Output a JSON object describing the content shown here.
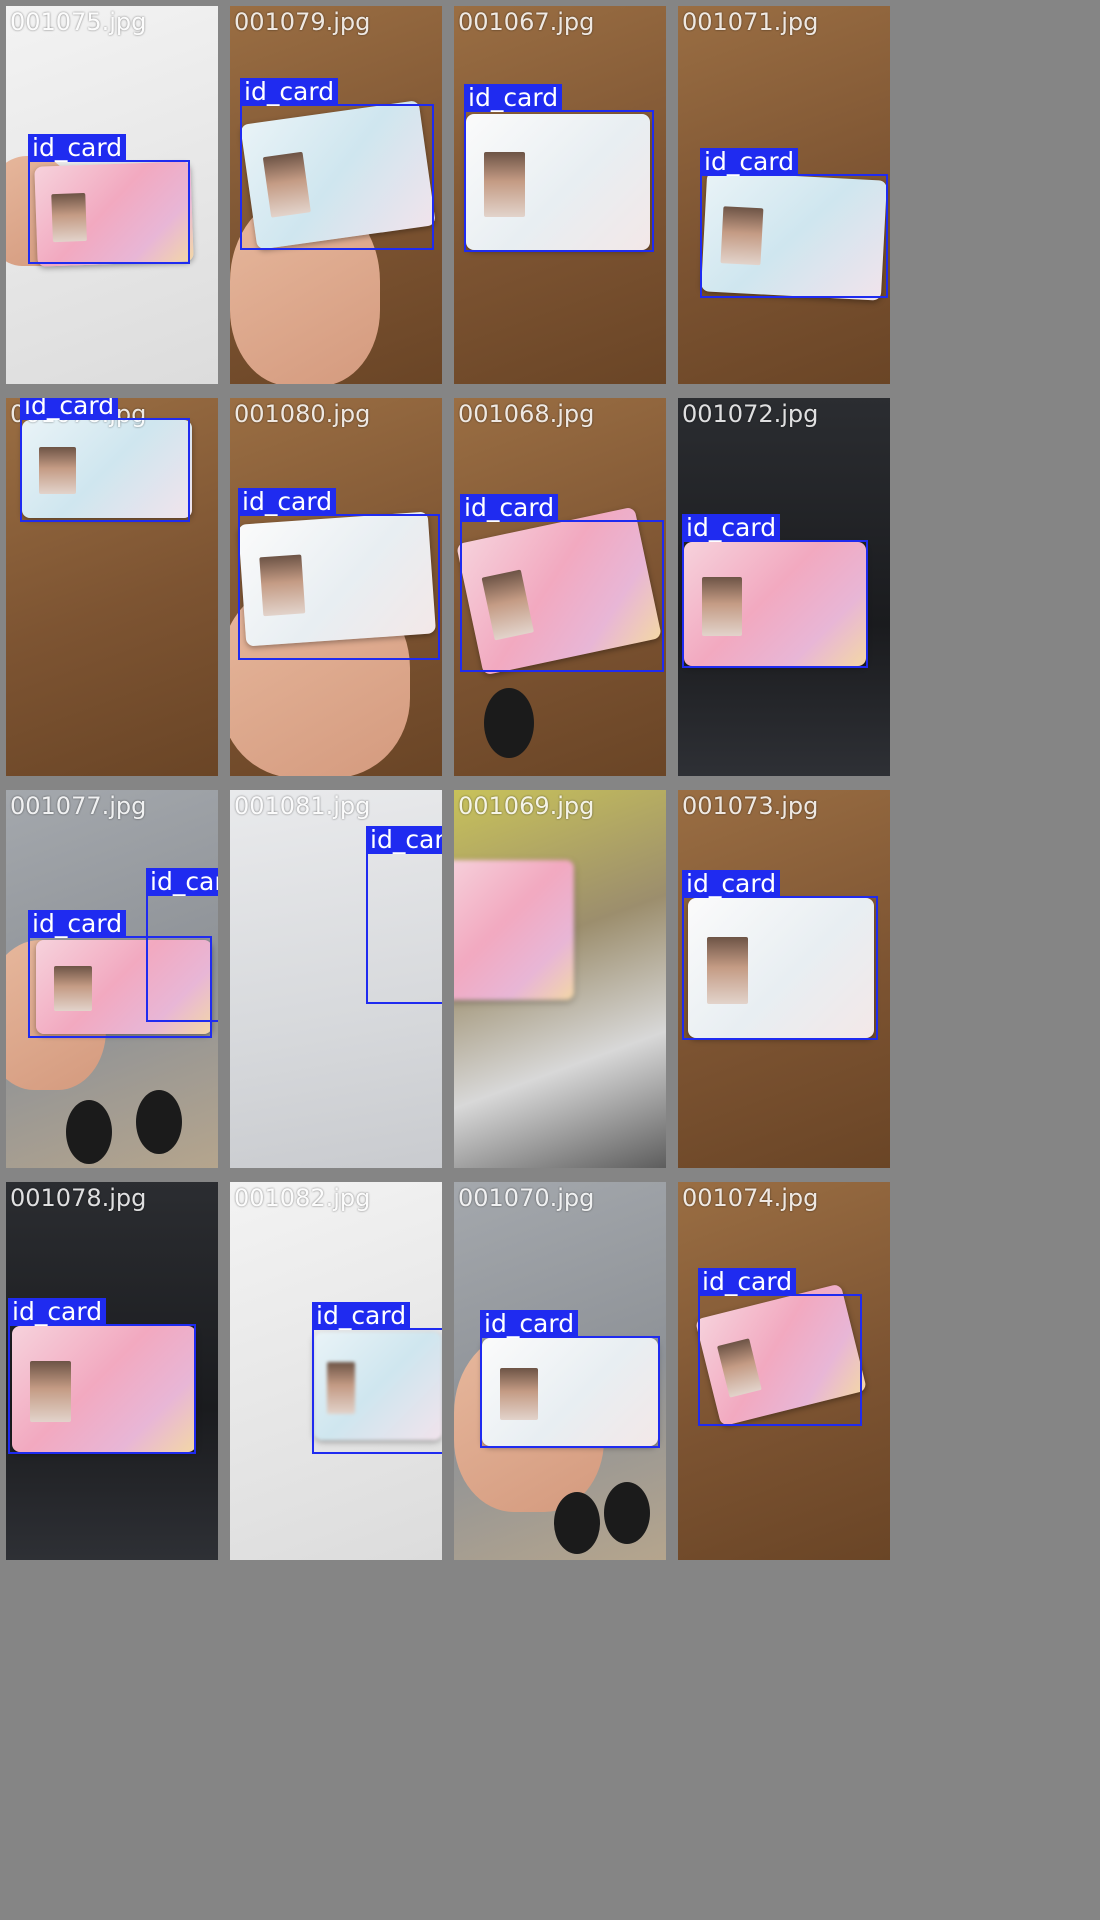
{
  "colors": {
    "bbox": "#1f2bf0",
    "label_text": "#ffffff",
    "grid_background": "#858585"
  },
  "tiles": [
    {
      "filename": "001075.jpg",
      "boxes": [
        {
          "label": "id_card"
        }
      ]
    },
    {
      "filename": "001079.jpg",
      "boxes": [
        {
          "label": "id_card"
        }
      ]
    },
    {
      "filename": "001067.jpg",
      "boxes": [
        {
          "label": "id_card"
        }
      ]
    },
    {
      "filename": "001071.jpg",
      "boxes": [
        {
          "label": "id_card"
        }
      ]
    },
    {
      "filename": "001076.jpg",
      "boxes": [
        {
          "label": "id_card"
        }
      ]
    },
    {
      "filename": "001080.jpg",
      "boxes": [
        {
          "label": "id_card"
        }
      ]
    },
    {
      "filename": "001068.jpg",
      "boxes": [
        {
          "label": "id_card"
        }
      ]
    },
    {
      "filename": "001072.jpg",
      "boxes": [
        {
          "label": "id_card"
        }
      ]
    },
    {
      "filename": "001077.jpg",
      "boxes": [
        {
          "label": "id_card"
        },
        {
          "label": "id_card"
        }
      ]
    },
    {
      "filename": "001081.jpg",
      "boxes": [
        {
          "label": "id_card"
        }
      ]
    },
    {
      "filename": "001069.jpg",
      "boxes": []
    },
    {
      "filename": "001073.jpg",
      "boxes": [
        {
          "label": "id_card"
        }
      ]
    },
    {
      "filename": "001078.jpg",
      "boxes": [
        {
          "label": "id_card"
        }
      ]
    },
    {
      "filename": "001082.jpg",
      "boxes": [
        {
          "label": "id_card"
        }
      ]
    },
    {
      "filename": "001070.jpg",
      "boxes": [
        {
          "label": "id_card"
        }
      ]
    },
    {
      "filename": "001074.jpg",
      "boxes": [
        {
          "label": "id_card"
        }
      ]
    }
  ]
}
